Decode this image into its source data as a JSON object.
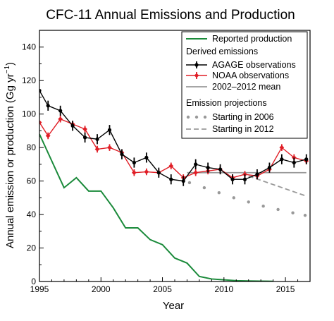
{
  "chart_data": {
    "type": "line",
    "title": "CFC-11 Annual Emissions and Production",
    "xlabel": "Year",
    "ylabel_main": "Annual emission or production (Gg yr",
    "ylabel_sup": "−1",
    "ylabel_close": ")",
    "xlim": [
      1995,
      2017
    ],
    "ylim": [
      0,
      150
    ],
    "xticks": [
      1995,
      2000,
      2005,
      2010,
      2015
    ],
    "yticks": [
      0,
      20,
      40,
      60,
      80,
      100,
      120,
      140
    ],
    "grid": false,
    "legend_position": "top-right",
    "legend": {
      "reported": "Reported production",
      "derived_header": "Derived emissions",
      "agage": "AGAGE observations",
      "noaa": "NOAA observations",
      "mean": "2002–2012 mean",
      "projection_header": "Emission projections",
      "proj2006": "Starting in 2006",
      "proj2012": "Starting in 2012"
    },
    "colors": {
      "reported": "#1a8a3a",
      "agage": "#000000",
      "noaa": "#e01e26",
      "mean": "#999999",
      "projection": "#999999"
    },
    "series": [
      {
        "key": "reported",
        "name": "Reported production",
        "x": [
          1995,
          1996,
          1997,
          1998,
          1999,
          2000,
          2001,
          2002,
          2003,
          2004,
          2005,
          2006,
          2007,
          2008,
          2009,
          2010,
          2011,
          2012,
          2013,
          2014
        ],
        "y": [
          88,
          72,
          56,
          62,
          54,
          54,
          44,
          32,
          32,
          25,
          22,
          14,
          11,
          3,
          1.5,
          1,
          0.5,
          0.3,
          0.2,
          0.1
        ]
      },
      {
        "key": "agage",
        "name": "AGAGE observations",
        "x": [
          1995,
          1995.7,
          1996.7,
          1997.7,
          1998.7,
          1999.7,
          2000.7,
          2001.7,
          2002.7,
          2003.7,
          2004.7,
          2005.7,
          2006.7,
          2007.7,
          2008.7,
          2009.7,
          2010.7,
          2011.7,
          2012.7,
          2013.7,
          2014.7,
          2015.7,
          2016.7
        ],
        "y": [
          114,
          105,
          102,
          93,
          86,
          85,
          90.5,
          76,
          71,
          74,
          65,
          61,
          60,
          70,
          68,
          67,
          61,
          61,
          64,
          68,
          73,
          71,
          73
        ],
        "err": [
          0,
          3,
          3,
          3,
          3,
          3,
          3,
          3,
          3,
          3,
          3,
          3,
          3,
          3,
          3,
          3,
          3,
          3,
          3,
          3,
          3,
          3,
          3
        ]
      },
      {
        "key": "noaa",
        "name": "NOAA observations",
        "x": [
          1995,
          1995.7,
          1996.7,
          1997.7,
          1998.7,
          1999.7,
          2000.7,
          2001.7,
          2002.7,
          2003.7,
          2004.7,
          2005.7,
          2006.7,
          2007.7,
          2008.7,
          2009.7,
          2010.7,
          2011.7,
          2012.7,
          2013.7,
          2014.7,
          2015.7,
          2016.7
        ],
        "y": [
          95,
          87,
          97,
          94,
          91,
          79,
          80,
          77,
          65,
          65.5,
          65,
          69,
          62,
          65,
          66,
          67,
          62,
          64,
          63,
          67,
          80,
          74,
          72
        ],
        "err": [
          0,
          2,
          2,
          2,
          2,
          2,
          2,
          2,
          2,
          2,
          2,
          2,
          2,
          2,
          2,
          2,
          2,
          2,
          2,
          2,
          2,
          2,
          2
        ]
      },
      {
        "key": "mean",
        "name": "2002–2012 mean",
        "x": [
          2007,
          2016.7
        ],
        "y": [
          65,
          65
        ]
      },
      {
        "key": "proj2006",
        "name": "Starting in 2006",
        "x": [
          2007.2,
          2008.4,
          2009.6,
          2010.8,
          2012,
          2013.2,
          2014.4,
          2015.6,
          2016.6
        ],
        "y": [
          59,
          56,
          53,
          50,
          47.5,
          45,
          43,
          41,
          39.5
        ]
      },
      {
        "key": "proj2012",
        "name": "Starting in 2012",
        "x": [
          2012,
          2016.7
        ],
        "y": [
          63,
          51
        ]
      }
    ]
  }
}
